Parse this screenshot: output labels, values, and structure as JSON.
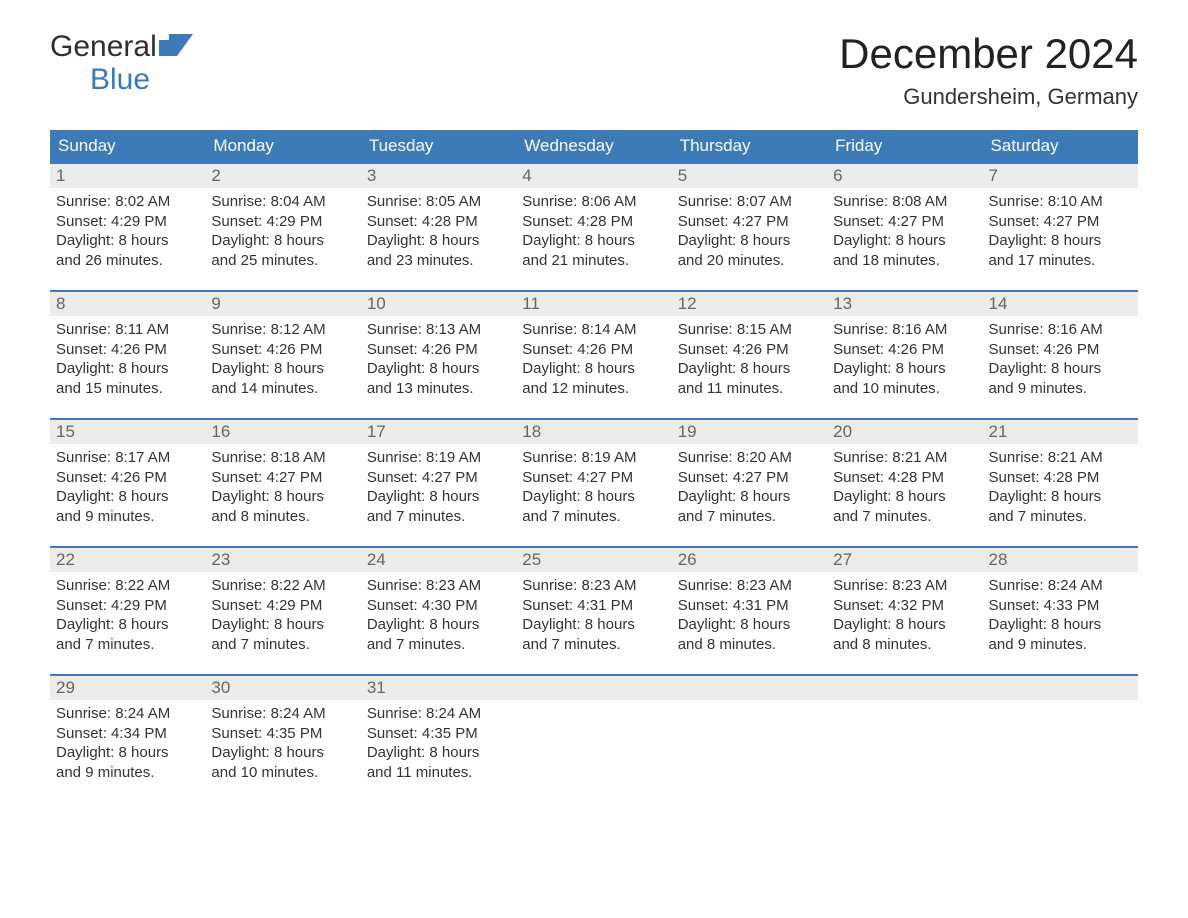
{
  "brand": {
    "line1": "General",
    "line2": "Blue",
    "text_color": "#2f2f2f",
    "accent_color": "#3d7bb8",
    "flag_color": "#3d7bb8"
  },
  "header": {
    "month_title": "December 2024",
    "location": "Gundersheim, Germany",
    "title_color": "#222222",
    "title_fontsize": 42,
    "location_fontsize": 22
  },
  "calendar": {
    "type": "table",
    "header_bg": "#3d7bb8",
    "header_text_color": "#ffffff",
    "header_fontsize": 17,
    "daynum_bg": "#ececec",
    "daynum_color": "#666666",
    "cell_text_color": "#333333",
    "cell_fontsize": 15,
    "row_border_color": "#3d7bb8",
    "row_border_width": 2,
    "background_color": "#ffffff",
    "weekdays": [
      "Sunday",
      "Monday",
      "Tuesday",
      "Wednesday",
      "Thursday",
      "Friday",
      "Saturday"
    ],
    "weeks": [
      [
        {
          "num": "1",
          "sunrise": "Sunrise: 8:02 AM",
          "sunset": "Sunset: 4:29 PM",
          "d1": "Daylight: 8 hours",
          "d2": "and 26 minutes."
        },
        {
          "num": "2",
          "sunrise": "Sunrise: 8:04 AM",
          "sunset": "Sunset: 4:29 PM",
          "d1": "Daylight: 8 hours",
          "d2": "and 25 minutes."
        },
        {
          "num": "3",
          "sunrise": "Sunrise: 8:05 AM",
          "sunset": "Sunset: 4:28 PM",
          "d1": "Daylight: 8 hours",
          "d2": "and 23 minutes."
        },
        {
          "num": "4",
          "sunrise": "Sunrise: 8:06 AM",
          "sunset": "Sunset: 4:28 PM",
          "d1": "Daylight: 8 hours",
          "d2": "and 21 minutes."
        },
        {
          "num": "5",
          "sunrise": "Sunrise: 8:07 AM",
          "sunset": "Sunset: 4:27 PM",
          "d1": "Daylight: 8 hours",
          "d2": "and 20 minutes."
        },
        {
          "num": "6",
          "sunrise": "Sunrise: 8:08 AM",
          "sunset": "Sunset: 4:27 PM",
          "d1": "Daylight: 8 hours",
          "d2": "and 18 minutes."
        },
        {
          "num": "7",
          "sunrise": "Sunrise: 8:10 AM",
          "sunset": "Sunset: 4:27 PM",
          "d1": "Daylight: 8 hours",
          "d2": "and 17 minutes."
        }
      ],
      [
        {
          "num": "8",
          "sunrise": "Sunrise: 8:11 AM",
          "sunset": "Sunset: 4:26 PM",
          "d1": "Daylight: 8 hours",
          "d2": "and 15 minutes."
        },
        {
          "num": "9",
          "sunrise": "Sunrise: 8:12 AM",
          "sunset": "Sunset: 4:26 PM",
          "d1": "Daylight: 8 hours",
          "d2": "and 14 minutes."
        },
        {
          "num": "10",
          "sunrise": "Sunrise: 8:13 AM",
          "sunset": "Sunset: 4:26 PM",
          "d1": "Daylight: 8 hours",
          "d2": "and 13 minutes."
        },
        {
          "num": "11",
          "sunrise": "Sunrise: 8:14 AM",
          "sunset": "Sunset: 4:26 PM",
          "d1": "Daylight: 8 hours",
          "d2": "and 12 minutes."
        },
        {
          "num": "12",
          "sunrise": "Sunrise: 8:15 AM",
          "sunset": "Sunset: 4:26 PM",
          "d1": "Daylight: 8 hours",
          "d2": "and 11 minutes."
        },
        {
          "num": "13",
          "sunrise": "Sunrise: 8:16 AM",
          "sunset": "Sunset: 4:26 PM",
          "d1": "Daylight: 8 hours",
          "d2": "and 10 minutes."
        },
        {
          "num": "14",
          "sunrise": "Sunrise: 8:16 AM",
          "sunset": "Sunset: 4:26 PM",
          "d1": "Daylight: 8 hours",
          "d2": "and 9 minutes."
        }
      ],
      [
        {
          "num": "15",
          "sunrise": "Sunrise: 8:17 AM",
          "sunset": "Sunset: 4:26 PM",
          "d1": "Daylight: 8 hours",
          "d2": "and 9 minutes."
        },
        {
          "num": "16",
          "sunrise": "Sunrise: 8:18 AM",
          "sunset": "Sunset: 4:27 PM",
          "d1": "Daylight: 8 hours",
          "d2": "and 8 minutes."
        },
        {
          "num": "17",
          "sunrise": "Sunrise: 8:19 AM",
          "sunset": "Sunset: 4:27 PM",
          "d1": "Daylight: 8 hours",
          "d2": "and 7 minutes."
        },
        {
          "num": "18",
          "sunrise": "Sunrise: 8:19 AM",
          "sunset": "Sunset: 4:27 PM",
          "d1": "Daylight: 8 hours",
          "d2": "and 7 minutes."
        },
        {
          "num": "19",
          "sunrise": "Sunrise: 8:20 AM",
          "sunset": "Sunset: 4:27 PM",
          "d1": "Daylight: 8 hours",
          "d2": "and 7 minutes."
        },
        {
          "num": "20",
          "sunrise": "Sunrise: 8:21 AM",
          "sunset": "Sunset: 4:28 PM",
          "d1": "Daylight: 8 hours",
          "d2": "and 7 minutes."
        },
        {
          "num": "21",
          "sunrise": "Sunrise: 8:21 AM",
          "sunset": "Sunset: 4:28 PM",
          "d1": "Daylight: 8 hours",
          "d2": "and 7 minutes."
        }
      ],
      [
        {
          "num": "22",
          "sunrise": "Sunrise: 8:22 AM",
          "sunset": "Sunset: 4:29 PM",
          "d1": "Daylight: 8 hours",
          "d2": "and 7 minutes."
        },
        {
          "num": "23",
          "sunrise": "Sunrise: 8:22 AM",
          "sunset": "Sunset: 4:29 PM",
          "d1": "Daylight: 8 hours",
          "d2": "and 7 minutes."
        },
        {
          "num": "24",
          "sunrise": "Sunrise: 8:23 AM",
          "sunset": "Sunset: 4:30 PM",
          "d1": "Daylight: 8 hours",
          "d2": "and 7 minutes."
        },
        {
          "num": "25",
          "sunrise": "Sunrise: 8:23 AM",
          "sunset": "Sunset: 4:31 PM",
          "d1": "Daylight: 8 hours",
          "d2": "and 7 minutes."
        },
        {
          "num": "26",
          "sunrise": "Sunrise: 8:23 AM",
          "sunset": "Sunset: 4:31 PM",
          "d1": "Daylight: 8 hours",
          "d2": "and 8 minutes."
        },
        {
          "num": "27",
          "sunrise": "Sunrise: 8:23 AM",
          "sunset": "Sunset: 4:32 PM",
          "d1": "Daylight: 8 hours",
          "d2": "and 8 minutes."
        },
        {
          "num": "28",
          "sunrise": "Sunrise: 8:24 AM",
          "sunset": "Sunset: 4:33 PM",
          "d1": "Daylight: 8 hours",
          "d2": "and 9 minutes."
        }
      ],
      [
        {
          "num": "29",
          "sunrise": "Sunrise: 8:24 AM",
          "sunset": "Sunset: 4:34 PM",
          "d1": "Daylight: 8 hours",
          "d2": "and 9 minutes."
        },
        {
          "num": "30",
          "sunrise": "Sunrise: 8:24 AM",
          "sunset": "Sunset: 4:35 PM",
          "d1": "Daylight: 8 hours",
          "d2": "and 10 minutes."
        },
        {
          "num": "31",
          "sunrise": "Sunrise: 8:24 AM",
          "sunset": "Sunset: 4:35 PM",
          "d1": "Daylight: 8 hours",
          "d2": "and 11 minutes."
        },
        {
          "empty": true
        },
        {
          "empty": true
        },
        {
          "empty": true
        },
        {
          "empty": true
        }
      ]
    ]
  }
}
